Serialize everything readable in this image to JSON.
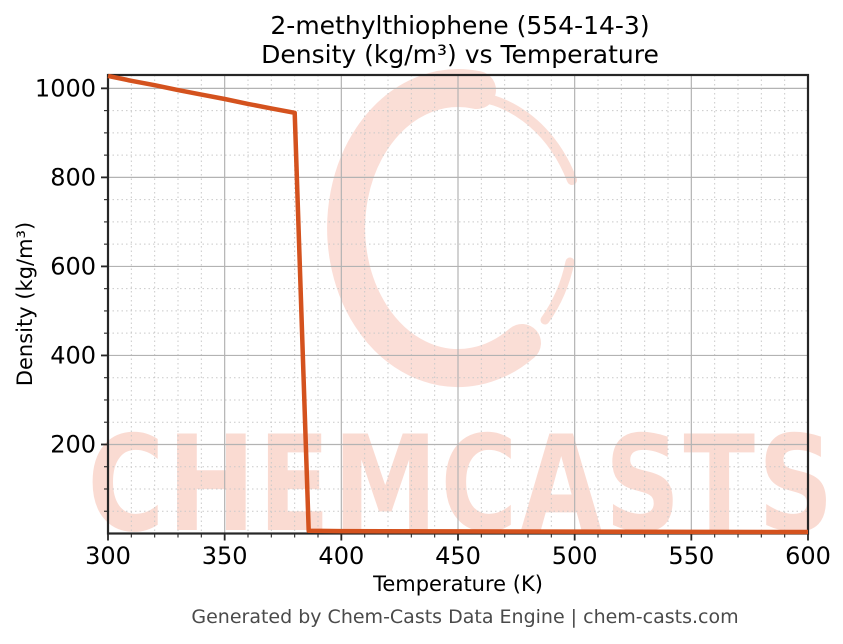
{
  "title": {
    "line1": "2-methylthiophene (554-14-3)",
    "line2": "Density (kg/m³) vs Temperature"
  },
  "footer": "Generated by Chem-Casts Data Engine | chem-casts.com",
  "watermark": {
    "text": "CHEMCASTS",
    "logo": "brushstroke-c-swirl"
  },
  "colors": {
    "line": "#d4521e",
    "grid_major": "#b3b3b3",
    "grid_minor": "#c9c9c9",
    "spine": "#262626",
    "tick_text": "#000000",
    "footer_text": "#4a4a4a",
    "watermark": "#f1937a"
  },
  "chart_data": {
    "type": "line",
    "title": "2-methylthiophene (554-14-3) Density (kg/m³) vs Temperature",
    "xlabel": "Temperature (K)",
    "ylabel": "Density (kg/m³)",
    "xlim": [
      300,
      600
    ],
    "ylim": [
      0,
      1030
    ],
    "x_ticks": [
      300,
      350,
      400,
      450,
      500,
      550,
      600
    ],
    "x_minor_step": 10,
    "y_ticks": [
      200,
      400,
      600,
      800,
      1000
    ],
    "y_minor_step": 50,
    "grid": "major solid, minor dashed",
    "legend": "none",
    "series": [
      {
        "name": "Density",
        "color": "#d4521e",
        "points": [
          [
            300,
            1028
          ],
          [
            310,
            1017
          ],
          [
            320,
            1007
          ],
          [
            330,
            996
          ],
          [
            340,
            986
          ],
          [
            350,
            976
          ],
          [
            360,
            965
          ],
          [
            370,
            955
          ],
          [
            380,
            945
          ],
          [
            386,
            6
          ],
          [
            400,
            5.5
          ],
          [
            450,
            4.8
          ],
          [
            500,
            4.2
          ],
          [
            550,
            3.7
          ],
          [
            600,
            3.3
          ]
        ]
      }
    ]
  }
}
